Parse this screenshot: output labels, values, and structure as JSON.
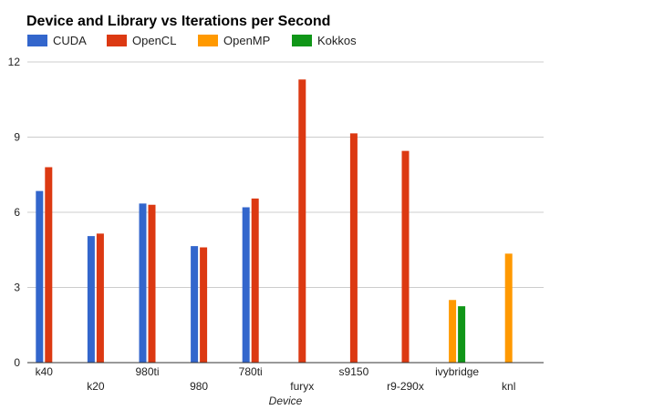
{
  "chart_data": {
    "type": "bar",
    "title": "Device and Library vs Iterations per Second",
    "xlabel": "Device",
    "ylabel": "",
    "categories": [
      "k40",
      "k20",
      "980ti",
      "980",
      "780ti",
      "furyx",
      "s9150",
      "r9-290x",
      "ivybridge",
      "knl"
    ],
    "series": [
      {
        "name": "CUDA",
        "color": "#3366cc",
        "values": [
          6.85,
          5.05,
          6.35,
          4.65,
          6.2,
          null,
          null,
          null,
          null,
          null
        ]
      },
      {
        "name": "OpenCL",
        "color": "#dc3912",
        "values": [
          7.8,
          5.15,
          6.3,
          4.6,
          6.55,
          11.3,
          9.15,
          8.45,
          null,
          null
        ]
      },
      {
        "name": "OpenMP",
        "color": "#ff9900",
        "values": [
          null,
          null,
          null,
          null,
          null,
          null,
          null,
          null,
          2.5,
          4.35
        ]
      },
      {
        "name": "Kokkos",
        "color": "#109618",
        "values": [
          null,
          null,
          null,
          null,
          null,
          null,
          null,
          null,
          2.25,
          null
        ]
      }
    ],
    "ylim": [
      0,
      12
    ],
    "yticks": [
      0,
      3,
      6,
      9,
      12
    ],
    "grid": true,
    "legend_position": "top-left"
  }
}
